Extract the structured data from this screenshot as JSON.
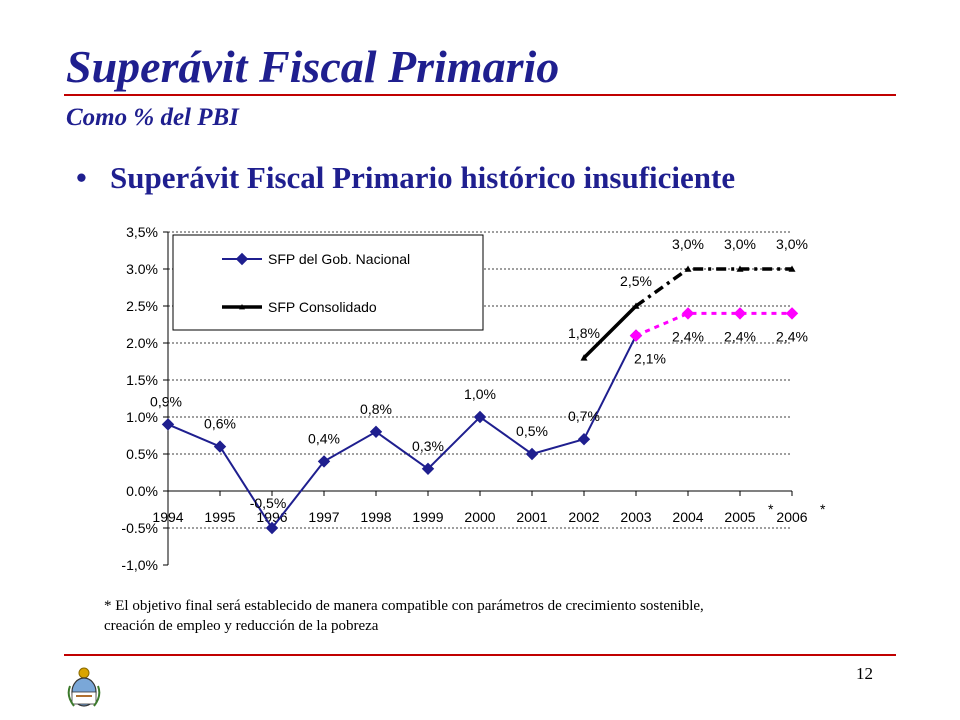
{
  "slide": {
    "title": "Superávit Fiscal Primario",
    "subtitle": "Como % del PBI",
    "bullet": "Superávit Fiscal Primario histórico insuficiente",
    "note_line1": "* El objetivo final será establecido de manera compatible con parámetros de crecimiento sostenible,",
    "note_line2": "creación  de empleo y reducción de la pobreza",
    "page_number": "12",
    "accent_color": "#1f1f8f",
    "rule_color": "#c00000"
  },
  "chart_data": {
    "type": "line",
    "categories": [
      "1994",
      "1995",
      "1996",
      "1997",
      "1998",
      "1999",
      "2000",
      "2001",
      "2002",
      "2003",
      "2004",
      "2005",
      "2006"
    ],
    "category_markers": [
      "",
      "",
      "",
      "",
      "",
      "",
      "",
      "",
      "",
      "",
      "",
      "*",
      "*"
    ],
    "ylim": [
      -1.0,
      3.5
    ],
    "yticks": [
      3.5,
      3.0,
      2.5,
      2.0,
      1.5,
      1.0,
      0.5,
      0.0,
      -0.5,
      -1.0
    ],
    "ytick_labels": [
      "3,5%",
      "3.0%",
      "2.5%",
      "2.0%",
      "1.5%",
      "1.0%",
      "0.5%",
      "0.0%",
      "-0.5%",
      "-1,0%"
    ],
    "grid": "horizontal dashed",
    "legend_position": "top-left",
    "series": [
      {
        "name": "SFP del Gob. Nacional",
        "color": "#1f1f8f",
        "marker": "diamond",
        "values": [
          0.9,
          0.6,
          -0.5,
          0.4,
          0.8,
          0.3,
          1.0,
          0.5,
          0.7,
          2.1,
          null,
          null,
          null
        ],
        "labels": [
          "0,9%",
          "0,6%",
          "-0,5%",
          "0,4%",
          "0,8%",
          "0,3%",
          "1,0%",
          "0,5%",
          "0,7%",
          "2,1%",
          "",
          "",
          ""
        ]
      },
      {
        "name": "SFP Consolidado",
        "color": "#000000",
        "marker": "triangle",
        "values": [
          null,
          null,
          null,
          null,
          null,
          null,
          null,
          null,
          1.8,
          2.5,
          3.0,
          3.0,
          3.0
        ],
        "labels": [
          "",
          "",
          "",
          "",
          "",
          "",
          "",
          "",
          "1,8%",
          "2,5%",
          "3,0%",
          "3,0%",
          "3,0%"
        ]
      },
      {
        "name": "",
        "color": "#ff00ff",
        "marker": "diamond",
        "values": [
          null,
          null,
          null,
          null,
          null,
          null,
          null,
          null,
          null,
          2.1,
          2.4,
          2.4,
          2.4
        ],
        "labels": [
          "",
          "",
          "",
          "",
          "",
          "",
          "",
          "",
          "",
          "",
          "2,4%",
          "2,4%",
          "2,4%"
        ]
      }
    ]
  }
}
